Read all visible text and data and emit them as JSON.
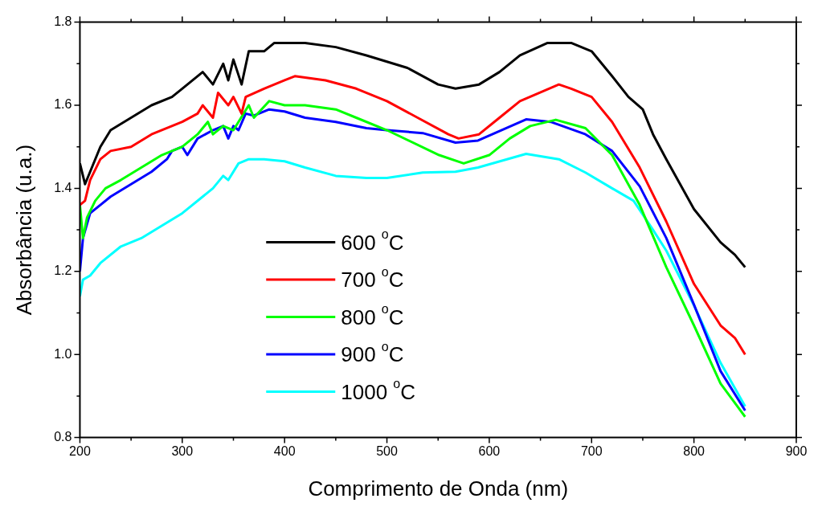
{
  "chart_data": {
    "type": "line",
    "xlabel": "Comprimento de Onda (nm)",
    "ylabel": "Absorbância (u.a.)",
    "xlim": [
      200,
      900
    ],
    "ylim": [
      0.8,
      1.8
    ],
    "xticks": [
      200,
      {
        "value": 250,
        "label": null
      },
      300,
      {
        "value": 350,
        "label": null
      },
      400,
      {
        "value": 450,
        "label": null
      },
      500,
      {
        "value": 550,
        "label": null
      },
      600,
      {
        "value": 650,
        "label": null
      },
      700,
      {
        "value": 750,
        "label": null
      },
      800,
      {
        "value": 850,
        "label": null
      },
      900
    ],
    "yticks": [
      {
        "value": 0.8,
        "label": "0.8"
      },
      {
        "value": 0.9,
        "label": null
      },
      {
        "value": 1,
        "label": "1.0"
      },
      {
        "value": 1.1,
        "label": null
      },
      1.2,
      {
        "value": 1.3,
        "label": null
      },
      1.4,
      {
        "value": 1.5,
        "label": null
      },
      1.6,
      {
        "value": 1.7,
        "label": null
      },
      1.8
    ],
    "legend": "left",
    "line_style": "solid",
    "marker": "none",
    "series": [
      {
        "name": "600 $^{o}$C",
        "color": "#000000",
        "x": [
          200,
          205,
          210,
          220,
          230,
          250,
          270,
          290,
          300,
          320,
          330,
          340,
          345,
          350,
          358,
          365,
          380,
          390,
          400,
          420,
          450,
          480,
          520,
          550,
          567,
          590,
          610,
          630,
          657,
          680,
          700,
          720,
          736,
          750,
          760,
          773,
          800,
          826,
          840,
          850
        ],
        "values": [
          1.46,
          1.41,
          1.44,
          1.5,
          1.54,
          1.57,
          1.6,
          1.62,
          1.64,
          1.68,
          1.65,
          1.7,
          1.66,
          1.71,
          1.65,
          1.73,
          1.73,
          1.75,
          1.75,
          1.75,
          1.74,
          1.72,
          1.69,
          1.65,
          1.64,
          1.65,
          1.68,
          1.72,
          1.75,
          1.75,
          1.73,
          1.67,
          1.62,
          1.59,
          1.53,
          1.47,
          1.35,
          1.27,
          1.24,
          1.21
        ]
      },
      {
        "name": "700 $^{o}$C",
        "color": "#ff0000",
        "x": [
          200,
          205,
          210,
          220,
          230,
          250,
          270,
          300,
          315,
          320,
          330,
          335,
          345,
          350,
          358,
          362,
          380,
          400,
          410,
          440,
          470,
          500,
          530,
          560,
          570,
          590,
          610,
          630,
          668,
          680,
          700,
          720,
          747,
          773,
          800,
          826,
          840,
          850
        ],
        "values": [
          1.36,
          1.37,
          1.42,
          1.47,
          1.49,
          1.5,
          1.53,
          1.56,
          1.58,
          1.6,
          1.57,
          1.63,
          1.6,
          1.62,
          1.58,
          1.62,
          1.64,
          1.66,
          1.67,
          1.66,
          1.64,
          1.61,
          1.57,
          1.53,
          1.52,
          1.53,
          1.57,
          1.61,
          1.65,
          1.64,
          1.62,
          1.56,
          1.45,
          1.32,
          1.17,
          1.07,
          1.04,
          1.0
        ]
      },
      {
        "name": "800 $^{o}$C",
        "color": "#00ff00",
        "x": [
          200,
          203,
          207,
          215,
          225,
          240,
          260,
          280,
          300,
          315,
          325,
          330,
          340,
          350,
          365,
          370,
          385,
          400,
          420,
          450,
          470,
          500,
          551,
          575,
          600,
          620,
          640,
          665,
          694,
          720,
          747,
          773,
          800,
          826,
          850
        ],
        "values": [
          1.36,
          1.28,
          1.33,
          1.37,
          1.4,
          1.42,
          1.45,
          1.48,
          1.5,
          1.53,
          1.56,
          1.53,
          1.55,
          1.54,
          1.6,
          1.57,
          1.61,
          1.6,
          1.6,
          1.59,
          1.57,
          1.54,
          1.48,
          1.46,
          1.48,
          1.52,
          1.55,
          1.565,
          1.545,
          1.48,
          1.36,
          1.21,
          1.07,
          0.93,
          0.85
        ]
      },
      {
        "name": "900 $^{o}$C",
        "color": "#0000ff",
        "x": [
          200,
          203,
          210,
          220,
          230,
          250,
          270,
          285,
          290,
          300,
          305,
          315,
          330,
          340,
          345,
          350,
          355,
          362,
          370,
          385,
          400,
          420,
          450,
          480,
          500,
          535,
          567,
          589,
          636,
          660,
          694,
          720,
          747,
          773,
          800,
          826,
          850
        ],
        "values": [
          1.2,
          1.28,
          1.34,
          1.36,
          1.38,
          1.41,
          1.44,
          1.47,
          1.49,
          1.5,
          1.48,
          1.52,
          1.54,
          1.55,
          1.52,
          1.55,
          1.54,
          1.58,
          1.575,
          1.59,
          1.585,
          1.57,
          1.56,
          1.545,
          1.54,
          1.533,
          1.51,
          1.515,
          1.566,
          1.56,
          1.53,
          1.49,
          1.405,
          1.28,
          1.12,
          0.96,
          0.865
        ]
      },
      {
        "name": "1000 $^{o}$C",
        "color": "#00ffff",
        "x": [
          200,
          203,
          210,
          220,
          240,
          260,
          280,
          300,
          320,
          330,
          340,
          345,
          355,
          365,
          380,
          400,
          420,
          450,
          480,
          500,
          535,
          567,
          589,
          636,
          668,
          694,
          720,
          741,
          760,
          773,
          800,
          826,
          850
        ],
        "values": [
          1.14,
          1.18,
          1.19,
          1.22,
          1.26,
          1.28,
          1.31,
          1.34,
          1.38,
          1.4,
          1.43,
          1.42,
          1.46,
          1.47,
          1.47,
          1.465,
          1.45,
          1.43,
          1.425,
          1.425,
          1.438,
          1.44,
          1.45,
          1.483,
          1.47,
          1.438,
          1.4,
          1.37,
          1.3,
          1.25,
          1.118,
          0.98,
          0.875
        ]
      }
    ]
  }
}
